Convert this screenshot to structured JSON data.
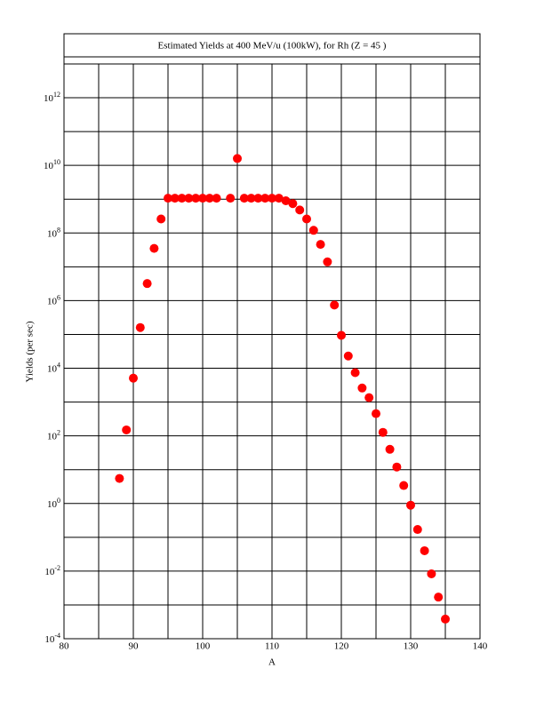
{
  "chart_data": {
    "type": "scatter",
    "title": "Estimated Yields at 400 MeV/u (100kW), for Rh (Z = 45 )",
    "xlabel": "A",
    "ylabel": "Yields (per sec)",
    "log_y": true,
    "grid": true,
    "color": "#ff0000",
    "xlim": [
      80,
      140
    ],
    "xticks": [
      80,
      90,
      100,
      110,
      120,
      130,
      140
    ],
    "x_minor_grid": [
      85,
      95,
      105,
      115,
      125,
      135
    ],
    "ylim": [
      0.0001,
      10000000000000.0
    ],
    "yticks": [
      {
        "value": 0.0001,
        "label": "10^-4"
      },
      {
        "value": 0.01,
        "label": "10^-2"
      },
      {
        "value": 1,
        "label": "10^0"
      },
      {
        "value": 100,
        "label": "10^2"
      },
      {
        "value": 10000,
        "label": "10^4"
      },
      {
        "value": 1000000,
        "label": "10^6"
      },
      {
        "value": 100000000,
        "label": "10^8"
      },
      {
        "value": 10000000000,
        "label": "10^10"
      },
      {
        "value": 1000000000000,
        "label": "10^12"
      }
    ],
    "y_minor_grid": [
      0.001,
      0.1,
      10,
      1000,
      100000,
      10000000,
      1000000000,
      100000000000
    ],
    "x": [
      88,
      89,
      90,
      91,
      92,
      93,
      94,
      95,
      96,
      97,
      98,
      99,
      100,
      101,
      102,
      104,
      105,
      106,
      107,
      108,
      109,
      110,
      111,
      112,
      113,
      114,
      115,
      116,
      117,
      118,
      119,
      120,
      121,
      122,
      123,
      124,
      125,
      126,
      127,
      128,
      129,
      130,
      131,
      132,
      133,
      134,
      135
    ],
    "values": [
      5.5,
      150,
      5100,
      160000,
      3200000,
      35000000,
      260000000,
      1070000000,
      1070000000,
      1070000000,
      1070000000,
      1070000000,
      1070000000,
      1070000000,
      1070000000,
      1070000000,
      16000000000,
      1070000000,
      1070000000,
      1070000000,
      1070000000,
      1070000000,
      1070000000,
      900000000,
      740000000,
      480000000,
      260000000,
      120000000,
      46000000,
      14000000,
      740000,
      94000,
      23000,
      7400,
      2600,
      1350,
      455,
      127,
      40,
      12,
      3.4,
      0.89,
      0.17,
      0.04,
      0.0083,
      0.0017,
      0.00038
    ]
  }
}
